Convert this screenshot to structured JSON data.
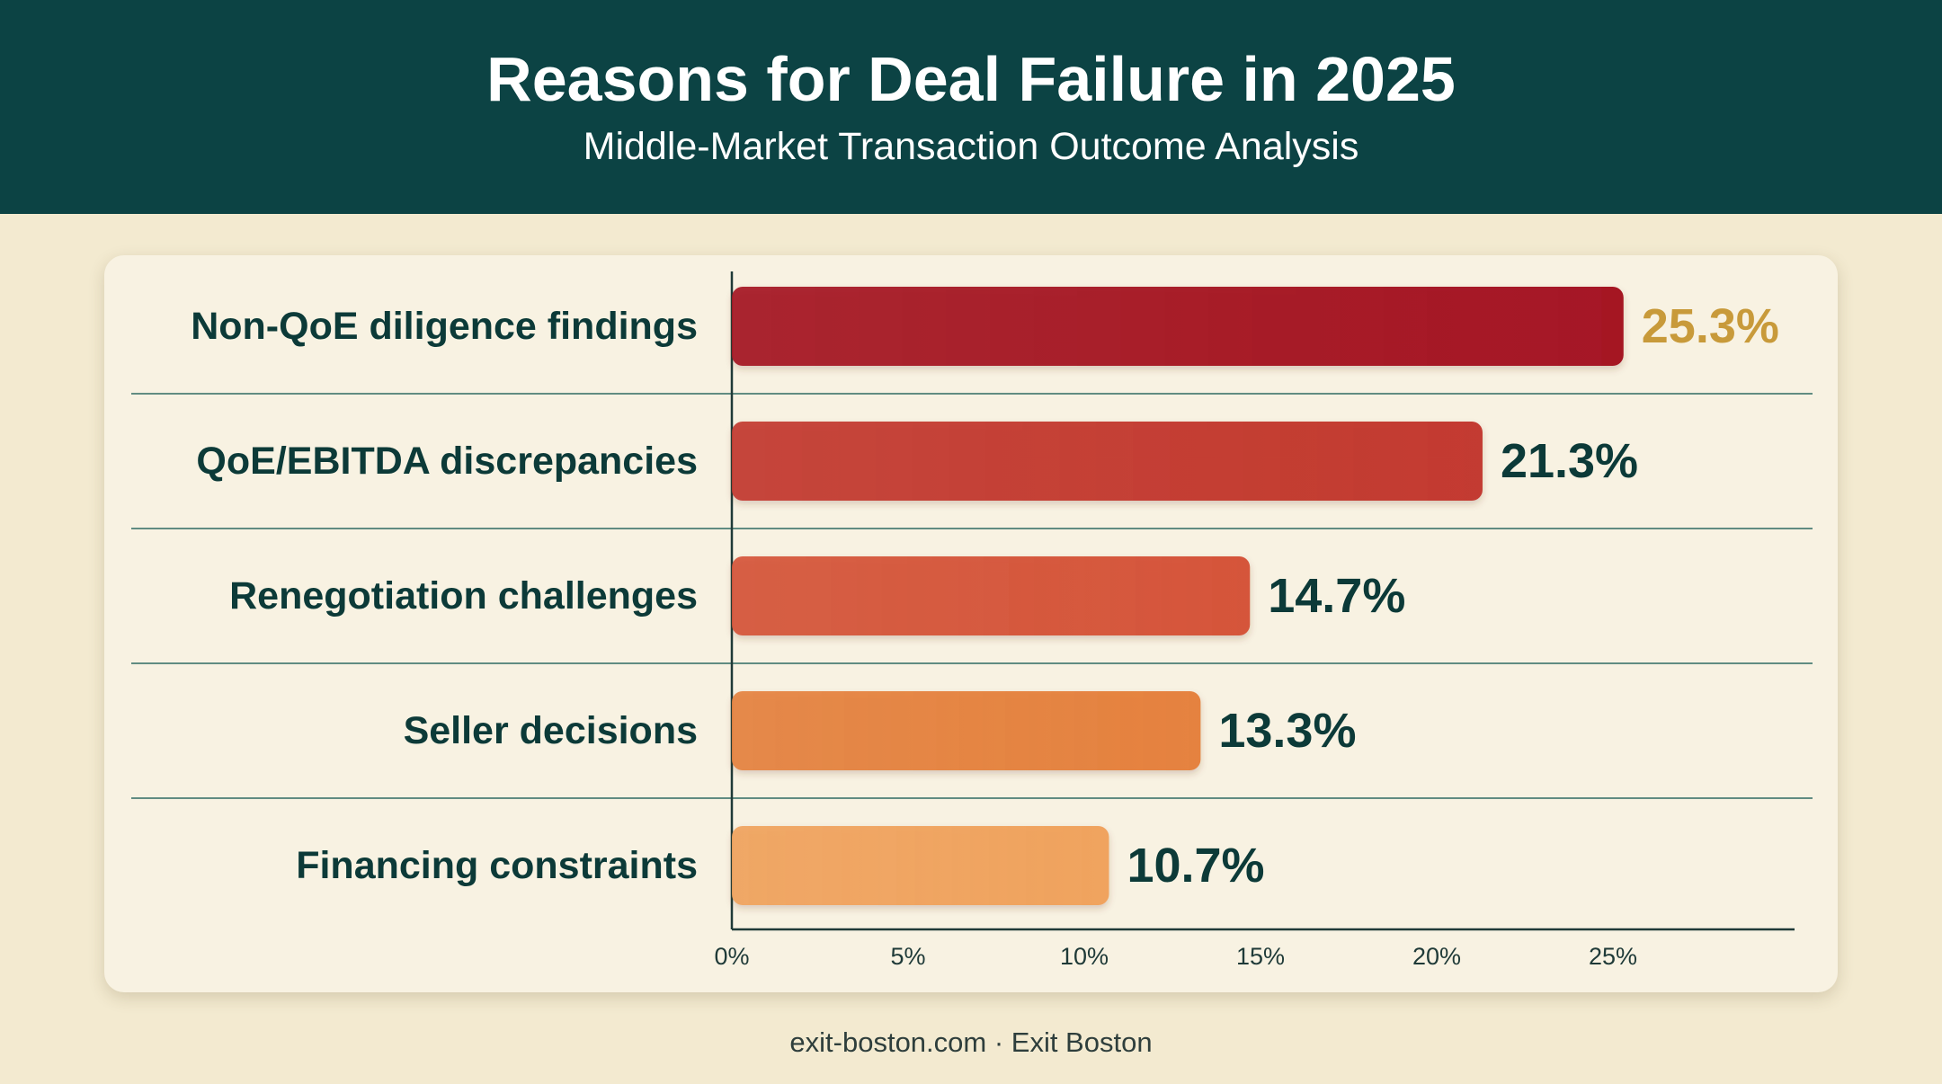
{
  "header": {
    "title": "Reasons for Deal Failure in 2025",
    "subtitle": "Middle-Market Transaction Outcome Analysis"
  },
  "footer": {
    "text": "exit-boston.com · Exit Boston"
  },
  "chart_data": {
    "type": "bar",
    "orientation": "horizontal",
    "categories": [
      "Non-QoE diligence findings",
      "QoE/EBITDA discrepancies",
      "Renegotiation challenges",
      "Seller decisions",
      "Financing constraints"
    ],
    "values": [
      25.3,
      21.3,
      14.7,
      13.3,
      10.7
    ],
    "value_labels": [
      "25.3%",
      "21.3%",
      "14.7%",
      "13.3%",
      "10.7%"
    ],
    "bar_colors": [
      "#a51424",
      "#c33a30",
      "#d5553a",
      "#e5823f",
      "#f0a35e"
    ],
    "highlight_label_color": "#c89a3a",
    "label_color": "#0c3a38",
    "xlim": [
      0,
      30
    ],
    "x_ticks": [
      0,
      5,
      10,
      15,
      20,
      25
    ],
    "x_tick_labels": [
      "0%",
      "5%",
      "10%",
      "15%",
      "20%",
      "25%"
    ],
    "xlabel": "",
    "ylabel": "",
    "grid": false,
    "legend": "none"
  }
}
